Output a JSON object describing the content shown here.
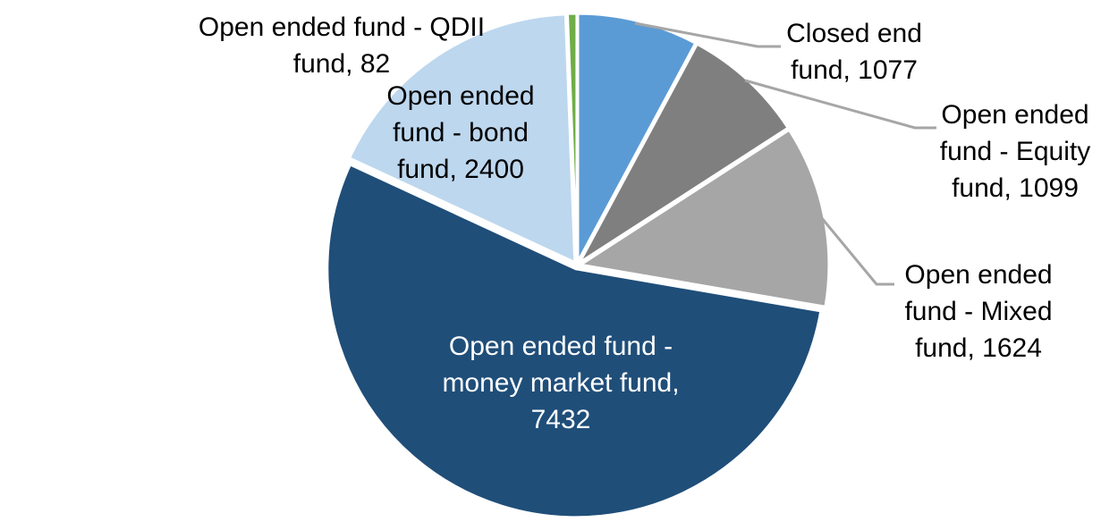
{
  "chart_data": {
    "type": "pie",
    "title": "",
    "start_angle_deg": 0,
    "direction": "clockwise",
    "legend": "none",
    "background_color": "#FFFFFF",
    "leader_line_color": "#A6A6A6",
    "slice_border_color": "#FFFFFF",
    "slices": [
      {
        "id": "closed-end-fund",
        "label": "Closed end fund",
        "value": 1077,
        "color": "#5B9BD5",
        "data_label": "Closed end\nfund, 1077",
        "label_placement": "outside-with-leader"
      },
      {
        "id": "equity-fund",
        "label": "Open ended fund - Equity fund",
        "value": 1099,
        "color": "#7F7F7F",
        "data_label": "Open ended\nfund - Equity\nfund, 1099",
        "label_placement": "outside-with-leader"
      },
      {
        "id": "mixed-fund",
        "label": "Open ended fund - Mixed fund",
        "value": 1624,
        "color": "#A6A6A6",
        "data_label": "Open ended\nfund - Mixed\nfund, 1624",
        "label_placement": "outside-with-leader"
      },
      {
        "id": "money-market-fund",
        "label": "Open ended fund - money market fund",
        "value": 7432,
        "color": "#1F4E79",
        "data_label": "Open ended fund -\nmoney market fund,\n7432",
        "label_placement": "inside"
      },
      {
        "id": "bond-fund",
        "label": "Open ended fund - bond fund",
        "value": 2400,
        "color": "#BDD7EE",
        "data_label": "Open ended\nfund - bond\nfund, 2400",
        "label_placement": "inside"
      },
      {
        "id": "qdii-fund",
        "label": "Open ended fund - QDII fund",
        "value": 82,
        "color": "#70AD47",
        "data_label": "Open ended fund - QDII\nfund, 82",
        "label_placement": "outside"
      }
    ]
  }
}
